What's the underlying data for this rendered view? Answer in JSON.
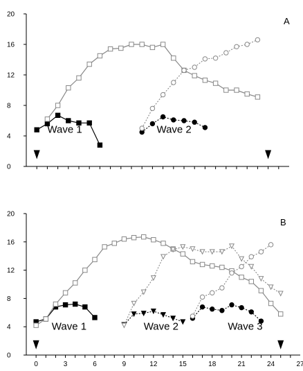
{
  "chart_data": [
    {
      "type": "line",
      "panel_label": "A",
      "title": "",
      "xlabel": "",
      "ylabel": "",
      "xlim": [
        -1,
        24
      ],
      "ylim": [
        0,
        20
      ],
      "yticks": [
        0,
        4,
        8,
        12,
        16,
        20
      ],
      "x_tick_positions": [
        0,
        1,
        2,
        3,
        4,
        5,
        6,
        7,
        8,
        9,
        10,
        11,
        12,
        13,
        14,
        15,
        16,
        17,
        18,
        19,
        20,
        21,
        22,
        23
      ],
      "x_tick_labels_shown": false,
      "grid": false,
      "legend": "none",
      "annotations": [
        {
          "text": "Wave 1",
          "x": 1.0,
          "y": 4.4
        },
        {
          "text": "Wave 2",
          "x": 11.4,
          "y": 4.4
        }
      ],
      "arrows": [
        {
          "x": 0,
          "y": 1.5
        },
        {
          "x": 22,
          "y": 1.5
        }
      ],
      "series": [
        {
          "marker": "filled-square",
          "line": "solid",
          "color": "#000000",
          "points": [
            [
              0,
              4.8
            ],
            [
              1,
              5.6
            ],
            [
              2,
              6.7
            ],
            [
              3,
              6.0
            ],
            [
              4,
              5.7
            ],
            [
              5,
              5.7
            ],
            [
              6,
              2.8
            ]
          ]
        },
        {
          "marker": "open-square",
          "line": "solid",
          "color": "#888888",
          "points": [
            [
              1,
              6.2
            ],
            [
              2,
              8.0
            ],
            [
              3,
              10.3
            ],
            [
              4,
              11.6
            ],
            [
              5,
              13.4
            ],
            [
              6,
              14.5
            ],
            [
              7,
              15.4
            ],
            [
              8,
              15.5
            ],
            [
              9,
              16.0
            ],
            [
              10,
              16.0
            ],
            [
              11,
              15.6
            ],
            [
              12,
              16.0
            ],
            [
              13,
              14.2
            ],
            [
              14,
              12.6
            ],
            [
              15,
              11.9
            ],
            [
              16,
              11.3
            ],
            [
              17,
              10.9
            ],
            [
              18,
              10.0
            ],
            [
              19,
              10.0
            ],
            [
              20,
              9.5
            ],
            [
              21,
              9.1
            ]
          ]
        },
        {
          "marker": "filled-circle",
          "line": "dotted",
          "color": "#000000",
          "points": [
            [
              10,
              4.5
            ],
            [
              11,
              5.6
            ],
            [
              12,
              6.5
            ],
            [
              13,
              6.1
            ],
            [
              14,
              6.0
            ],
            [
              15,
              5.8
            ],
            [
              16,
              5.1
            ]
          ]
        },
        {
          "marker": "open-circle",
          "line": "dotted",
          "color": "#888888",
          "points": [
            [
              10,
              5.0
            ],
            [
              11,
              7.6
            ],
            [
              12,
              9.4
            ],
            [
              13,
              11.0
            ],
            [
              14,
              12.6
            ],
            [
              15,
              13.0
            ],
            [
              16,
              14.1
            ],
            [
              17,
              14.2
            ],
            [
              18,
              14.9
            ],
            [
              19,
              15.7
            ],
            [
              20,
              16.0
            ],
            [
              21,
              16.6
            ]
          ]
        }
      ]
    },
    {
      "type": "line",
      "panel_label": "B",
      "title": "",
      "xlabel": "",
      "ylabel": "",
      "xlim": [
        -1,
        27
      ],
      "ylim": [
        0,
        20
      ],
      "yticks": [
        0,
        4,
        8,
        12,
        16,
        20
      ],
      "xticks": [
        0,
        3,
        6,
        9,
        12,
        15,
        18,
        21,
        24,
        27
      ],
      "x_tick_positions": [
        0,
        1,
        2,
        3,
        4,
        5,
        6,
        7,
        8,
        9,
        10,
        11,
        12,
        13,
        14,
        15,
        16,
        17,
        18,
        19,
        20,
        21,
        22,
        23,
        24,
        25,
        26
      ],
      "x_tick_labels_shown": true,
      "grid": false,
      "legend": "none",
      "annotations": [
        {
          "text": "Wave 1",
          "x": 1.6,
          "y": 3.6
        },
        {
          "text": "Wave 2",
          "x": 11.0,
          "y": 3.6
        },
        {
          "text": "Wave 3",
          "x": 19.6,
          "y": 3.6
        }
      ],
      "arrows": [
        {
          "x": 0,
          "y": 1.4
        },
        {
          "x": 25,
          "y": 1.4
        }
      ],
      "series": [
        {
          "marker": "filled-square",
          "line": "solid",
          "color": "#000000",
          "points": [
            [
              0,
              4.7
            ],
            [
              1,
              5.1
            ],
            [
              2,
              6.8
            ],
            [
              3,
              7.1
            ],
            [
              4,
              7.2
            ],
            [
              5,
              6.8
            ],
            [
              6,
              5.3
            ]
          ]
        },
        {
          "marker": "open-square",
          "line": "solid",
          "color": "#888888",
          "points": [
            [
              0,
              4.2
            ],
            [
              1,
              5.1
            ],
            [
              2,
              7.2
            ],
            [
              3,
              8.8
            ],
            [
              4,
              10.2
            ],
            [
              5,
              12.0
            ],
            [
              6,
              13.5
            ],
            [
              7,
              15.3
            ],
            [
              8,
              15.8
            ],
            [
              9,
              16.4
            ],
            [
              10,
              16.6
            ],
            [
              11,
              16.7
            ],
            [
              12,
              16.3
            ],
            [
              13,
              15.8
            ],
            [
              14,
              15.0
            ],
            [
              15,
              14.3
            ],
            [
              16,
              13.2
            ],
            [
              17,
              12.8
            ],
            [
              18,
              12.6
            ],
            [
              19,
              12.4
            ],
            [
              20,
              11.9
            ],
            [
              21,
              11.0
            ],
            [
              22,
              10.4
            ],
            [
              23,
              9.1
            ],
            [
              24,
              7.3
            ],
            [
              25,
              5.8
            ]
          ]
        },
        {
          "marker": "filled-triangle-down",
          "line": "dotted",
          "color": "#000000",
          "points": [
            [
              9,
              4.3
            ],
            [
              10,
              5.8
            ],
            [
              11,
              5.9
            ],
            [
              12,
              6.2
            ],
            [
              13,
              5.7
            ],
            [
              14,
              5.2
            ],
            [
              15,
              4.7
            ]
          ]
        },
        {
          "marker": "open-triangle-down",
          "line": "dotted",
          "color": "#888888",
          "points": [
            [
              9,
              4.2
            ],
            [
              10,
              7.3
            ],
            [
              11,
              8.9
            ],
            [
              12,
              10.9
            ],
            [
              13,
              13.9
            ],
            [
              14,
              14.9
            ],
            [
              15,
              15.3
            ],
            [
              16,
              15.0
            ],
            [
              17,
              14.6
            ],
            [
              18,
              14.6
            ],
            [
              19,
              14.6
            ],
            [
              20,
              15.4
            ],
            [
              21,
              13.6
            ],
            [
              22,
              12.5
            ],
            [
              23,
              10.8
            ],
            [
              24,
              9.6
            ],
            [
              25,
              8.7
            ]
          ]
        },
        {
          "marker": "filled-circle",
          "line": "dotted",
          "color": "#000000",
          "points": [
            [
              16,
              5.2
            ],
            [
              17,
              6.8
            ],
            [
              18,
              6.5
            ],
            [
              19,
              6.3
            ],
            [
              20,
              7.1
            ],
            [
              21,
              6.7
            ],
            [
              22,
              6.1
            ],
            [
              23,
              4.8
            ]
          ]
        },
        {
          "marker": "open-circle",
          "line": "dotted",
          "color": "#888888",
          "points": [
            [
              16,
              5.5
            ],
            [
              17,
              8.2
            ],
            [
              18,
              8.8
            ],
            [
              19,
              9.5
            ],
            [
              20,
              11.6
            ],
            [
              21,
              12.5
            ],
            [
              22,
              13.9
            ],
            [
              23,
              14.6
            ],
            [
              24,
              15.6
            ]
          ]
        }
      ]
    }
  ]
}
